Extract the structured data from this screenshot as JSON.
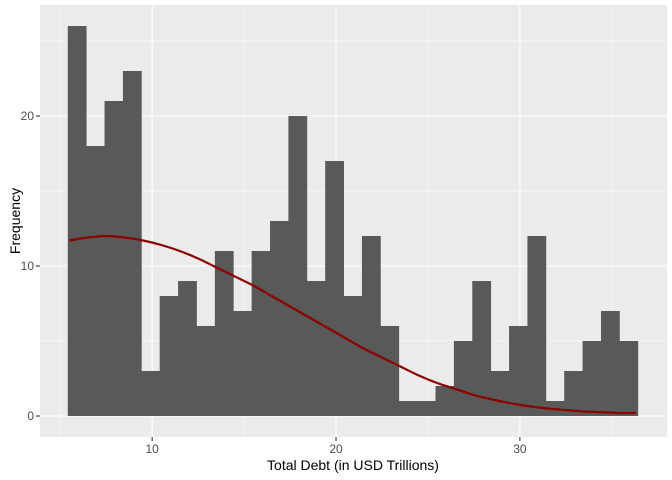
{
  "chart_data": {
    "type": "histogram",
    "xlabel": "Total Debt (in USD Trillions)",
    "ylabel": "Frequency",
    "xlim": [
      3.9,
      38.0
    ],
    "ylim": [
      -1.4,
      27.4
    ],
    "x_ticks": [
      10,
      20,
      30
    ],
    "y_ticks": [
      0,
      10,
      20
    ],
    "x_tick_labels": [
      "10",
      "20",
      "30"
    ],
    "y_tick_labels": [
      "0",
      "10",
      "20"
    ],
    "grid": true,
    "bin_edges": [
      5.41,
      6.41,
      7.41,
      8.41,
      9.41,
      10.41,
      11.41,
      12.41,
      13.41,
      14.41,
      15.41,
      16.41,
      17.41,
      18.41,
      19.41,
      20.41,
      21.41,
      22.41,
      23.41,
      24.41,
      25.41,
      26.41,
      27.41,
      28.41,
      29.41,
      30.41,
      31.41,
      32.41,
      33.41,
      34.41,
      35.41,
      36.41
    ],
    "counts": [
      26,
      18,
      21,
      23,
      3,
      8,
      9,
      6,
      11,
      7,
      11,
      13,
      20,
      9,
      17,
      8,
      12,
      6,
      1,
      1,
      2,
      5,
      9,
      3,
      6,
      12,
      1,
      3,
      5,
      7,
      5
    ],
    "bar_color": "#595959",
    "density_curve": {
      "color": "#8b0000",
      "x": [
        5.5,
        6.5,
        7.5,
        8.5,
        9.5,
        10.5,
        11.5,
        12.5,
        13.5,
        14.5,
        15.5,
        16.5,
        17.5,
        18.5,
        19.5,
        20.5,
        21.5,
        22.5,
        23.5,
        24.5,
        25.5,
        26.5,
        27.5,
        28.5,
        29.5,
        30.5,
        31.5,
        32.5,
        33.5,
        34.5,
        35.5,
        36.3
      ],
      "y": [
        11.7,
        11.9,
        12.0,
        11.9,
        11.7,
        11.4,
        11.0,
        10.5,
        9.9,
        9.3,
        8.7,
        8.0,
        7.3,
        6.6,
        5.9,
        5.2,
        4.5,
        3.9,
        3.3,
        2.7,
        2.2,
        1.8,
        1.4,
        1.1,
        0.85,
        0.65,
        0.5,
        0.4,
        0.3,
        0.25,
        0.2,
        0.2
      ]
    }
  }
}
